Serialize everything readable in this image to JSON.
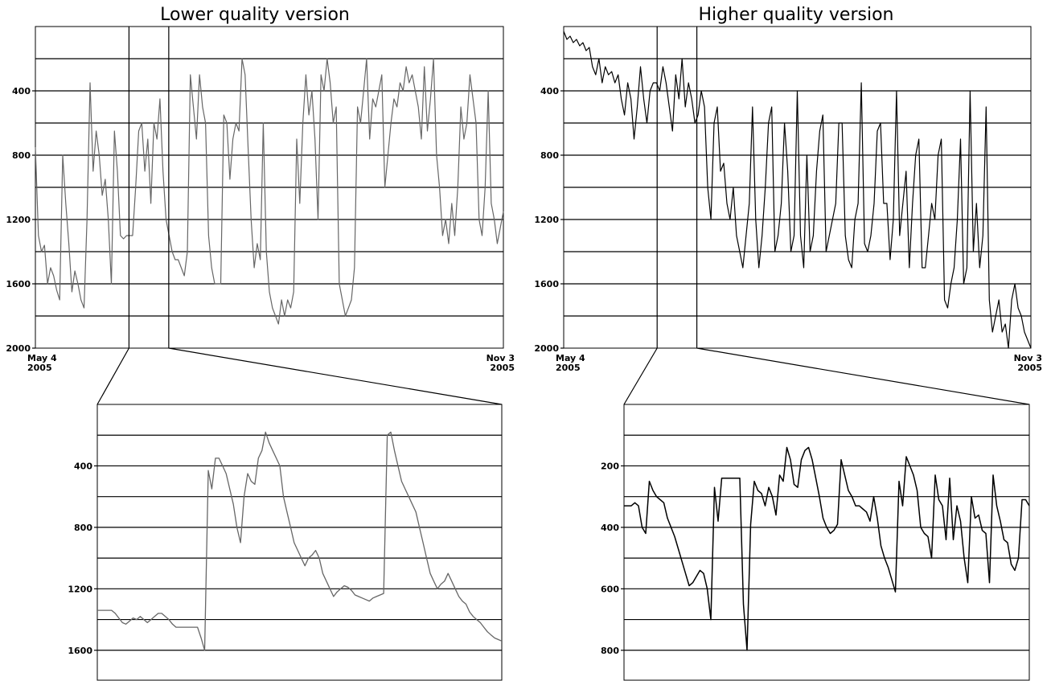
{
  "colors": {
    "lower_series": "#666666",
    "higher_series": "#000000",
    "grid": "#000000"
  },
  "chart_data": [
    {
      "id": "lower-main",
      "type": "line",
      "title": "Lower quality version",
      "ylim": [
        0,
        2000
      ],
      "y_inverted": true,
      "grid": true,
      "y_ticks": [
        400,
        800,
        1200,
        1600,
        2000
      ],
      "y_tick_labels": [
        "400",
        "800",
        "1200",
        "1600",
        "2000"
      ],
      "x_range_labels": {
        "start": [
          "May 4",
          "2005"
        ],
        "end": [
          "Nov 3",
          "2005"
        ]
      },
      "zoom_window": [
        0.2,
        0.285
      ],
      "series": [
        {
          "values": [
            750,
            1300,
            1400,
            1360,
            1600,
            1500,
            1550,
            1640,
            1700,
            800,
            1100,
            1350,
            1650,
            1520,
            1600,
            1700,
            1750,
            1200,
            350,
            900,
            650,
            800,
            1050,
            950,
            1200,
            1600,
            650,
            900,
            1300,
            1320,
            1300,
            1300,
            1300,
            1000,
            650,
            600,
            900,
            700,
            1100,
            600,
            700,
            450,
            900,
            1200,
            1300,
            1400,
            1450,
            1450,
            1500,
            1550,
            1400,
            300,
            500,
            700,
            300,
            500,
            600,
            1300,
            1500,
            1600,
            1600,
            1600,
            550,
            600,
            950,
            700,
            600,
            650,
            200,
            300,
            750,
            1200,
            1500,
            1350,
            1450,
            600,
            1400,
            1650,
            1750,
            1800,
            1850,
            1700,
            1800,
            1700,
            1750,
            1650,
            700,
            1100,
            600,
            300,
            550,
            400,
            700,
            1200,
            300,
            400,
            200,
            350,
            600,
            500,
            1600,
            1700,
            1800,
            1750,
            1700,
            1500,
            500,
            600,
            400,
            200,
            700,
            450,
            500,
            400,
            300,
            1000,
            800,
            600,
            450,
            500,
            350,
            400,
            250,
            350,
            300,
            400,
            500,
            700,
            250,
            650,
            450,
            200,
            800,
            1000,
            1300,
            1200,
            1350,
            1100,
            1300,
            1000,
            500,
            700,
            600,
            300,
            450,
            600,
            1200,
            1300,
            1000,
            400,
            1100,
            1200,
            1350,
            1250,
            1150
          ]
        }
      ]
    },
    {
      "id": "higher-main",
      "type": "line",
      "title": "Higher quality version",
      "ylim": [
        0,
        2000
      ],
      "y_inverted": true,
      "grid": true,
      "y_ticks": [
        400,
        800,
        1200,
        1600,
        2000
      ],
      "y_tick_labels": [
        "400",
        "800",
        "1200",
        "1600",
        "2000"
      ],
      "x_range_labels": {
        "start": [
          "May 4",
          "2005"
        ],
        "end": [
          "Nov 3",
          "2005"
        ]
      },
      "zoom_window": [
        0.2,
        0.285
      ],
      "series": [
        {
          "values": [
            30,
            80,
            60,
            100,
            80,
            120,
            100,
            150,
            130,
            250,
            300,
            200,
            350,
            250,
            300,
            280,
            350,
            300,
            450,
            550,
            350,
            450,
            700,
            500,
            250,
            450,
            600,
            400,
            350,
            350,
            400,
            250,
            350,
            500,
            650,
            300,
            450,
            200,
            500,
            350,
            450,
            600,
            550,
            400,
            500,
            1000,
            1200,
            600,
            500,
            900,
            850,
            1100,
            1200,
            1000,
            1300,
            1400,
            1500,
            1300,
            1100,
            500,
            1200,
            1500,
            1300,
            1000,
            600,
            500,
            1400,
            1300,
            1100,
            600,
            900,
            1400,
            1300,
            400,
            1300,
            1500,
            800,
            1400,
            1300,
            900,
            650,
            550,
            1400,
            1300,
            1200,
            1100,
            600,
            600,
            1300,
            1450,
            1500,
            1200,
            1100,
            350,
            1350,
            1400,
            1300,
            1100,
            650,
            600,
            1100,
            1100,
            1450,
            1200,
            400,
            1300,
            1100,
            900,
            1500,
            1100,
            800,
            700,
            1500,
            1500,
            1300,
            1100,
            1200,
            800,
            700,
            1700,
            1750,
            1600,
            1500,
            1200,
            700,
            1600,
            1500,
            400,
            1400,
            1100,
            1500,
            1300,
            500,
            1700,
            1900,
            1800,
            1700,
            1900,
            1850,
            2000,
            1700,
            1600,
            1750,
            1800,
            1900,
            1950,
            2000
          ]
        }
      ]
    },
    {
      "id": "lower-zoom",
      "type": "line",
      "ylim": [
        0,
        1800
      ],
      "y_inverted": true,
      "grid": true,
      "y_ticks": [
        400,
        800,
        1200,
        1600
      ],
      "y_tick_labels": [
        "400",
        "800",
        "1200",
        "1600"
      ],
      "series": [
        {
          "values": [
            1340,
            1340,
            1340,
            1340,
            1340,
            1360,
            1390,
            1420,
            1430,
            1410,
            1390,
            1400,
            1380,
            1400,
            1420,
            1400,
            1380,
            1360,
            1360,
            1380,
            1400,
            1430,
            1450,
            1450,
            1450,
            1450,
            1450,
            1450,
            1450,
            1520,
            1600,
            430,
            550,
            350,
            350,
            400,
            450,
            550,
            650,
            800,
            900,
            600,
            450,
            500,
            520,
            350,
            300,
            180,
            250,
            300,
            350,
            400,
            600,
            700,
            800,
            900,
            950,
            1000,
            1050,
            1000,
            980,
            950,
            1000,
            1100,
            1150,
            1200,
            1250,
            1220,
            1200,
            1180,
            1190,
            1210,
            1240,
            1250,
            1260,
            1270,
            1280,
            1260,
            1250,
            1240,
            1230,
            200,
            180,
            300,
            400,
            500,
            550,
            600,
            650,
            700,
            800,
            900,
            1000,
            1100,
            1150,
            1200,
            1170,
            1150,
            1100,
            1150,
            1200,
            1250,
            1280,
            1300,
            1350,
            1380,
            1400,
            1420,
            1450,
            1480,
            1500,
            1520,
            1530,
            1540
          ]
        }
      ]
    },
    {
      "id": "higher-zoom",
      "type": "line",
      "ylim": [
        0,
        900
      ],
      "y_inverted": true,
      "grid": true,
      "y_ticks": [
        200,
        400,
        600,
        800
      ],
      "y_tick_labels": [
        "200",
        "400",
        "600",
        "800"
      ],
      "series": [
        {
          "values": [
            330,
            330,
            330,
            320,
            330,
            400,
            420,
            250,
            280,
            300,
            310,
            320,
            370,
            400,
            430,
            470,
            510,
            550,
            590,
            580,
            560,
            540,
            550,
            600,
            700,
            270,
            380,
            240,
            240,
            240,
            240,
            240,
            240,
            650,
            800,
            390,
            250,
            280,
            290,
            330,
            270,
            300,
            360,
            230,
            250,
            140,
            180,
            260,
            270,
            180,
            150,
            140,
            180,
            240,
            300,
            370,
            400,
            420,
            410,
            390,
            180,
            230,
            280,
            300,
            330,
            330,
            340,
            350,
            380,
            300,
            370,
            460,
            500,
            530,
            570,
            610,
            250,
            330,
            170,
            200,
            230,
            280,
            400,
            420,
            430,
            500,
            230,
            310,
            330,
            440,
            240,
            440,
            330,
            380,
            500,
            580,
            300,
            370,
            360,
            410,
            420,
            580,
            230,
            330,
            380,
            440,
            450,
            520,
            540,
            500,
            310,
            310,
            330
          ]
        }
      ]
    }
  ]
}
